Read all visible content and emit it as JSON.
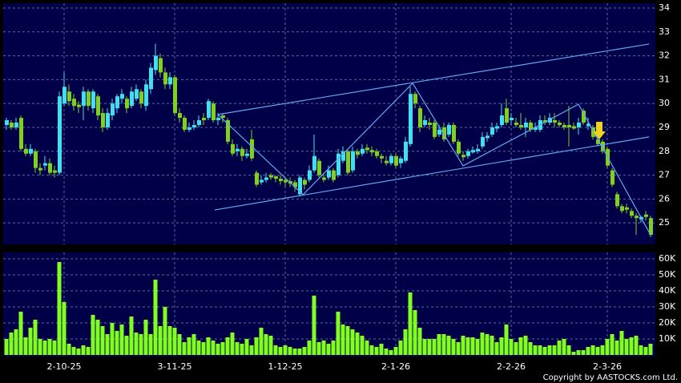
{
  "chart_data": {
    "type": "candlestick",
    "categories": [
      null,
      null,
      null,
      null,
      null,
      null,
      null,
      null,
      null,
      null,
      null,
      null,
      "2-10-25",
      null,
      null,
      null,
      null,
      null,
      null,
      null,
      null,
      null,
      null,
      null,
      null,
      null,
      null,
      null,
      null,
      null,
      null,
      null,
      null,
      null,
      null,
      "3-11-25",
      null,
      null,
      null,
      null,
      null,
      null,
      null,
      null,
      null,
      null,
      null,
      null,
      null,
      null,
      null,
      null,
      null,
      null,
      null,
      null,
      null,
      null,
      "1-12-25",
      null,
      null,
      null,
      null,
      null,
      null,
      null,
      null,
      null,
      null,
      null,
      null,
      null,
      null,
      null,
      null,
      null,
      null,
      null,
      null,
      null,
      null,
      "2-1-26",
      null,
      null,
      null,
      null,
      null,
      null,
      null,
      null,
      null,
      null,
      null,
      null,
      null,
      null,
      null,
      null,
      null,
      null,
      null,
      null,
      null,
      null,
      null,
      "2-2-26",
      null,
      null,
      null,
      null,
      null,
      null,
      null,
      null,
      null,
      null,
      null,
      null,
      null,
      null,
      null,
      null,
      null,
      null,
      null,
      "2-3-26",
      null,
      null,
      null,
      null,
      null,
      null,
      null,
      null,
      null
    ],
    "ohlc": [
      [
        29.1,
        29.4,
        28.9,
        29.3
      ],
      [
        29.2,
        29.3,
        28.9,
        29.0
      ],
      [
        29.0,
        29.4,
        28.9,
        29.2
      ],
      [
        29.4,
        29.5,
        28.0,
        28.1
      ],
      [
        28.1,
        28.3,
        27.8,
        27.9
      ],
      [
        27.9,
        28.3,
        27.8,
        28.1
      ],
      [
        28.0,
        28.1,
        27.1,
        27.3
      ],
      [
        27.3,
        27.5,
        27.0,
        27.2
      ],
      [
        27.4,
        27.8,
        27.2,
        27.5
      ],
      [
        27.5,
        27.7,
        27.0,
        27.1
      ],
      [
        27.2,
        27.4,
        26.9,
        27.1
      ],
      [
        27.1,
        30.5,
        27.0,
        30.3
      ],
      [
        30.0,
        31.3,
        29.9,
        30.7
      ],
      [
        30.5,
        30.8,
        29.9,
        30.1
      ],
      [
        30.2,
        30.4,
        29.7,
        29.9
      ],
      [
        29.95,
        30.1,
        29.6,
        29.85
      ],
      [
        29.9,
        30.7,
        29.3,
        30.5
      ],
      [
        30.5,
        30.6,
        29.7,
        29.9
      ],
      [
        29.8,
        30.6,
        29.6,
        30.5
      ],
      [
        30.3,
        30.4,
        29.3,
        29.5
      ],
      [
        29.6,
        29.8,
        28.8,
        29.0
      ],
      [
        29.0,
        29.8,
        28.9,
        29.6
      ],
      [
        29.5,
        30.2,
        29.3,
        30.0
      ],
      [
        29.8,
        30.4,
        29.6,
        30.3
      ],
      [
        30.2,
        30.6,
        30.0,
        30.4
      ],
      [
        30.2,
        30.3,
        29.6,
        29.8
      ],
      [
        29.9,
        30.7,
        29.8,
        30.5
      ],
      [
        30.2,
        30.8,
        30.1,
        30.6
      ],
      [
        30.5,
        30.6,
        29.8,
        30.0
      ],
      [
        29.9,
        31.0,
        29.7,
        30.8
      ],
      [
        30.6,
        31.7,
        30.4,
        31.5
      ],
      [
        31.4,
        32.5,
        31.2,
        32.0
      ],
      [
        31.9,
        32.1,
        31.1,
        31.3
      ],
      [
        31.3,
        31.5,
        30.6,
        30.8
      ],
      [
        30.8,
        31.3,
        30.6,
        31.1
      ],
      [
        31.1,
        31.2,
        29.5,
        29.6
      ],
      [
        29.6,
        29.8,
        29.2,
        29.4
      ],
      [
        29.4,
        29.5,
        28.8,
        28.9
      ],
      [
        28.9,
        29.2,
        28.8,
        29.0
      ],
      [
        29.0,
        29.3,
        28.9,
        29.1
      ],
      [
        29.1,
        29.5,
        29.0,
        29.3
      ],
      [
        29.4,
        29.6,
        29.1,
        29.3
      ],
      [
        29.4,
        30.2,
        29.3,
        30.1
      ],
      [
        30.0,
        30.1,
        29.2,
        29.3
      ],
      [
        29.3,
        29.6,
        29.1,
        29.4
      ],
      [
        29.5,
        29.6,
        29.2,
        29.4
      ],
      [
        29.3,
        29.4,
        28.3,
        28.4
      ],
      [
        28.3,
        28.5,
        27.8,
        27.9
      ],
      [
        28.0,
        28.3,
        27.8,
        28.1
      ],
      [
        28.1,
        28.2,
        27.6,
        27.8
      ],
      [
        27.8,
        28.1,
        27.7,
        27.9
      ],
      [
        28.5,
        28.9,
        27.6,
        27.7
      ],
      [
        27.1,
        27.2,
        26.5,
        26.6
      ],
      [
        26.7,
        27.0,
        26.6,
        26.8
      ],
      [
        26.8,
        27.1,
        26.7,
        26.9
      ],
      [
        27.0,
        27.1,
        26.8,
        26.9
      ],
      [
        26.95,
        27.0,
        26.7,
        26.85
      ],
      [
        26.85,
        27.0,
        26.6,
        26.75
      ],
      [
        26.8,
        26.9,
        26.5,
        26.7
      ],
      [
        26.75,
        26.9,
        26.5,
        26.65
      ],
      [
        26.7,
        26.8,
        26.3,
        26.5
      ],
      [
        26.2,
        27.0,
        26.1,
        26.9
      ],
      [
        26.8,
        26.9,
        26.4,
        26.6
      ],
      [
        26.8,
        27.4,
        26.7,
        27.2
      ],
      [
        27.2,
        28.7,
        27.1,
        27.8
      ],
      [
        27.6,
        27.7,
        26.9,
        27.0
      ],
      [
        26.9,
        27.1,
        26.7,
        26.8
      ],
      [
        26.9,
        27.4,
        26.8,
        27.2
      ],
      [
        27.2,
        27.3,
        26.7,
        26.8
      ],
      [
        27.0,
        28.1,
        26.9,
        27.9
      ],
      [
        27.6,
        28.2,
        27.5,
        28.0
      ],
      [
        28.0,
        28.1,
        27.0,
        27.1
      ],
      [
        27.2,
        28.2,
        27.1,
        28.0
      ],
      [
        28.0,
        28.1,
        27.7,
        27.85
      ],
      [
        27.9,
        28.3,
        27.8,
        28.1
      ],
      [
        28.15,
        28.3,
        27.9,
        28.05
      ],
      [
        28.05,
        28.2,
        27.8,
        27.95
      ],
      [
        28.0,
        28.1,
        27.7,
        27.8
      ],
      [
        27.8,
        27.9,
        27.5,
        27.7
      ],
      [
        27.6,
        27.8,
        27.4,
        27.5
      ],
      [
        27.5,
        27.9,
        27.4,
        27.8
      ],
      [
        27.8,
        27.9,
        27.3,
        27.4
      ],
      [
        27.5,
        27.8,
        27.3,
        27.7
      ],
      [
        27.6,
        28.6,
        27.5,
        28.4
      ],
      [
        28.3,
        30.7,
        28.2,
        30.4
      ],
      [
        30.4,
        30.5,
        29.8,
        30.0
      ],
      [
        29.8,
        29.9,
        28.8,
        29.0
      ],
      [
        29.1,
        29.5,
        29.0,
        29.3
      ],
      [
        29.2,
        29.4,
        28.9,
        29.1
      ],
      [
        29.2,
        29.3,
        28.5,
        28.6
      ],
      [
        28.7,
        29.1,
        28.6,
        28.9
      ],
      [
        29.0,
        29.2,
        28.4,
        28.5
      ],
      [
        28.7,
        29.2,
        28.6,
        29.1
      ],
      [
        29.1,
        29.2,
        28.3,
        28.4
      ],
      [
        28.4,
        28.5,
        27.8,
        27.9
      ],
      [
        27.85,
        28.0,
        27.6,
        27.75
      ],
      [
        27.8,
        28.1,
        27.7,
        28.0
      ],
      [
        27.95,
        28.2,
        27.9,
        28.05
      ],
      [
        28.0,
        28.3,
        27.9,
        28.1
      ],
      [
        28.2,
        28.8,
        28.1,
        28.6
      ],
      [
        28.55,
        28.8,
        28.4,
        28.65
      ],
      [
        28.7,
        29.2,
        28.6,
        29.0
      ],
      [
        28.95,
        29.2,
        28.8,
        29.05
      ],
      [
        29.1,
        30.0,
        29.0,
        29.5
      ],
      [
        29.8,
        30.2,
        29.1,
        29.2
      ],
      [
        29.3,
        29.6,
        29.1,
        29.4
      ],
      [
        29.2,
        29.4,
        29.0,
        29.1
      ],
      [
        29.1,
        29.6,
        28.9,
        29.0
      ],
      [
        29.0,
        29.4,
        28.6,
        29.2
      ],
      [
        29.2,
        29.3,
        28.8,
        28.9
      ],
      [
        28.9,
        29.2,
        28.8,
        29.0
      ],
      [
        28.9,
        29.5,
        28.8,
        29.3
      ],
      [
        29.3,
        29.5,
        29.1,
        29.2
      ],
      [
        29.2,
        29.6,
        29.1,
        29.4
      ],
      [
        29.3,
        29.6,
        29.0,
        29.2
      ],
      [
        29.2,
        29.3,
        29.0,
        29.1
      ],
      [
        29.1,
        29.2,
        28.9,
        29.0
      ],
      [
        29.1,
        29.9,
        28.2,
        29.0
      ],
      [
        29.05,
        29.2,
        28.9,
        28.95
      ],
      [
        29.0,
        29.4,
        28.7,
        29.2
      ],
      [
        29.7,
        29.8,
        29.1,
        29.2
      ],
      [
        29.05,
        29.4,
        28.9,
        29.15
      ],
      [
        29.0,
        29.1,
        28.5,
        28.6
      ],
      [
        28.5,
        28.6,
        28.2,
        28.3
      ],
      [
        28.4,
        28.5,
        27.9,
        28.0
      ],
      [
        28.1,
        28.2,
        27.3,
        27.4
      ],
      [
        27.2,
        27.3,
        26.5,
        26.6
      ],
      [
        26.2,
        26.3,
        25.6,
        25.7
      ],
      [
        25.7,
        25.8,
        25.4,
        25.5
      ],
      [
        25.65,
        25.8,
        25.4,
        25.55
      ],
      [
        25.5,
        25.6,
        25.2,
        25.3
      ],
      [
        25.3,
        25.4,
        24.5,
        25.2
      ],
      [
        25.15,
        25.3,
        25.0,
        25.25
      ],
      [
        25.35,
        25.5,
        25.1,
        25.25
      ],
      [
        25.2,
        25.3,
        24.4,
        24.5
      ]
    ],
    "volume": [
      10000,
      14000,
      16000,
      27000,
      11000,
      17000,
      22000,
      10000,
      9000,
      10000,
      9000,
      58000,
      33000,
      7000,
      5000,
      4000,
      6000,
      5000,
      25000,
      22000,
      18000,
      13000,
      20000,
      15000,
      19000,
      12000,
      24000,
      14000,
      13000,
      22000,
      13000,
      47000,
      18000,
      30000,
      18000,
      17000,
      13000,
      8000,
      11000,
      13000,
      9000,
      8000,
      11000,
      9000,
      7000,
      8000,
      11000,
      14000,
      8000,
      7000,
      10000,
      6000,
      11000,
      17000,
      13000,
      12000,
      6000,
      5000,
      6000,
      5000,
      4000,
      4000,
      5000,
      9000,
      37000,
      8000,
      9000,
      7000,
      9000,
      27000,
      19000,
      18000,
      16000,
      14000,
      12000,
      9000,
      6000,
      5000,
      7000,
      4000,
      3000,
      5000,
      9000,
      16000,
      39000,
      28000,
      17000,
      10000,
      10000,
      10000,
      13000,
      13000,
      12000,
      10000,
      8000,
      12000,
      11000,
      11000,
      10000,
      14000,
      13000,
      12000,
      8000,
      11000,
      19000,
      10000,
      8000,
      11000,
      12000,
      8000,
      6000,
      6000,
      5000,
      6000,
      6000,
      9000,
      10000,
      6000,
      2000,
      3000,
      3000,
      5000,
      6000,
      5000,
      6000,
      10000,
      13000,
      9000,
      15000,
      10000,
      11000,
      12000,
      6000,
      5000,
      7000
    ],
    "ylim": [
      24.1,
      34.2
    ],
    "yticks": [
      25,
      26,
      27,
      28,
      29,
      30,
      31,
      32,
      33,
      34
    ],
    "volume_ylim": [
      0,
      63500
    ],
    "volume_yticks": [
      {
        "value": 10000,
        "label": "10K"
      },
      {
        "value": 20000,
        "label": "20K"
      },
      {
        "value": 30000,
        "label": "30K"
      },
      {
        "value": 40000,
        "label": "40K"
      },
      {
        "value": 50000,
        "label": "50K"
      },
      {
        "value": 60000,
        "label": "60K"
      }
    ],
    "up_color": "#40e0f0",
    "down_color": "#80d020",
    "volume_color": "#80ff20",
    "trendlines": [
      {
        "x": [
          44,
          133.7
        ],
        "y": [
          29.54,
          32.49
        ]
      },
      {
        "x": [
          43.3,
          133.7
        ],
        "y": [
          25.54,
          28.6
        ]
      },
      {
        "x": [
          44,
          61.7,
          84.5,
          95,
          119,
          134
        ],
        "y": [
          29.54,
          26.18,
          30.85,
          27.39,
          29.97,
          24.5
        ]
      }
    ],
    "trendline_color": "#60a8f0",
    "grid": true,
    "source": "Copyright by AASTOCKS.com Ltd."
  }
}
